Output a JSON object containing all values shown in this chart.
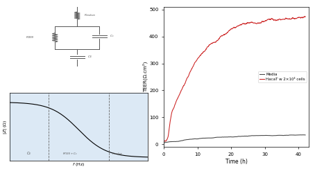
{
  "fig_width": 4.54,
  "fig_height": 2.44,
  "dpi": 100,
  "circuit_color": "#555555",
  "imp_bg_color": "#dce9f5",
  "ylabel": "TEER(Ω.cm²)",
  "xlabel": "Time (h)",
  "yticks": [
    0,
    100,
    200,
    300,
    400,
    500
  ],
  "xticks": [
    0,
    10,
    20,
    30,
    40
  ],
  "ylim": [
    -10,
    510
  ],
  "xlim": [
    0,
    43
  ],
  "legend_media": "Media",
  "legend_hacat": "HacaT w 2×10⁴ cells",
  "media_line_color": "#444444",
  "hacat_line_color": "#cc2222"
}
